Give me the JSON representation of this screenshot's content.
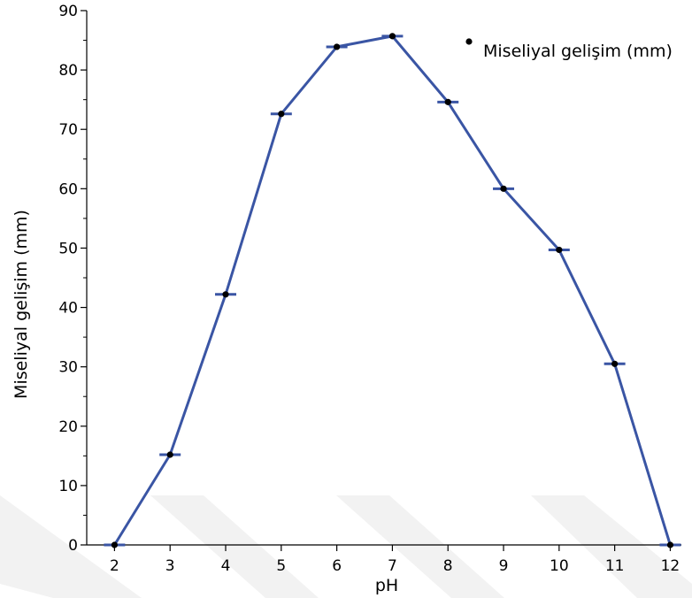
{
  "chart_data": {
    "type": "line",
    "xlabel": "pH",
    "ylabel": "Miseliyal gelişim (mm)",
    "x": [
      2,
      3,
      4,
      5,
      6,
      7,
      8,
      9,
      10,
      11,
      12
    ],
    "xlim": [
      1.5,
      12.2
    ],
    "ylim": [
      0,
      90
    ],
    "y_ticks": [
      0,
      10,
      20,
      30,
      40,
      50,
      60,
      70,
      80,
      90
    ],
    "x_ticks": [
      2,
      3,
      4,
      5,
      6,
      7,
      8,
      9,
      10,
      11,
      12
    ],
    "grid": false,
    "legend_position": "top-right",
    "series": [
      {
        "name": "Miseliyal gelişim (mm)",
        "values": [
          0,
          15.2,
          42.2,
          72.6,
          83.9,
          85.7,
          74.6,
          60.0,
          49.7,
          30.5,
          0
        ],
        "line_color": "#3a55a4",
        "marker_color": "#000000",
        "has_error_caps": true
      }
    ]
  }
}
